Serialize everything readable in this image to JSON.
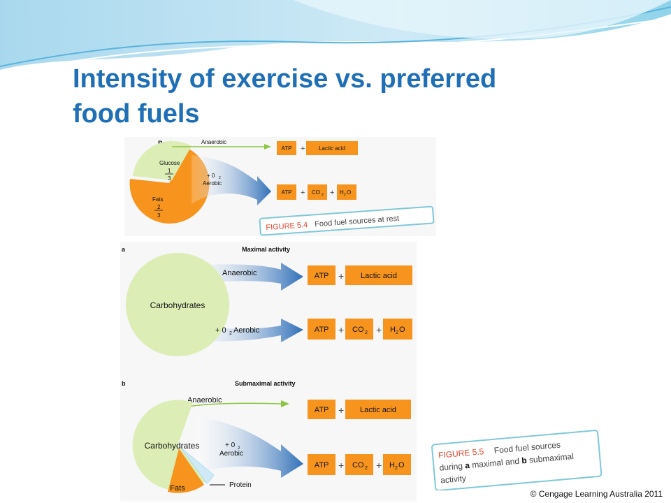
{
  "slide": {
    "title_line1": "Intensity of exercise vs. preferred",
    "title_line2": "food fuels",
    "copyright": "© Cengage Learning Australia 2011"
  },
  "figure_5_4": {
    "heading": "Rest",
    "glucose_label": "Glucose",
    "glucose_num": "1",
    "glucose_den": "3",
    "fats_label": "Fats",
    "fats_num": "2",
    "fats_den": "3",
    "anaerobic_label": "Anaerobic",
    "aerobic_label_o2": "+ 0",
    "aerobic_label_sub": "2",
    "aerobic_label": "Aerobic",
    "anaerobic_products": [
      "ATP",
      "Lactic acid"
    ],
    "aerobic_products": [
      "ATP",
      "CO",
      "H",
      "O"
    ],
    "caption_figure": "FIGURE 5.4",
    "caption_text": "Food fuel sources at rest"
  },
  "figure_5_5": {
    "panel_a_letter": "a",
    "panel_a_heading": "Maximal activity",
    "panel_a_circle": "Carbohydrates",
    "panel_a_anaerobic": "Anaerobic",
    "panel_a_aerobic_prefix": "+ 0",
    "panel_a_aerobic_sub": "2",
    "panel_a_aerobic": " Aerobic",
    "panel_b_letter": "b",
    "panel_b_heading": "Submaximal activity",
    "panel_b_carbs": "Carbohydrates",
    "panel_b_fats": "Fats",
    "panel_b_protein": "Protein",
    "panel_b_anaerobic": "Anaerobic",
    "panel_b_aerobic_o2": "+ 0",
    "panel_b_aerobic_sub": "2",
    "panel_b_aerobic": "Aerobic",
    "atp": "ATP",
    "lactic_acid": "Lactic acid",
    "co": "CO",
    "sub2": "2",
    "h": "H",
    "o": "O",
    "plus": "+",
    "caption_figure": "FIGURE 5.5",
    "caption_line1": "Food fuel sources",
    "caption_line2_pre": "during ",
    "caption_line2_a": "a",
    "caption_line2_mid": " maximal and ",
    "caption_line2_b": "b",
    "caption_line2_post": " submaximal",
    "caption_line3": "activity"
  },
  "colors": {
    "title": "#1f6fb6",
    "orange": "#f7941d",
    "light_green": "#dcedb6",
    "arrow_blue": "#2f6fb8",
    "green_line": "#8cc63f",
    "caption_red": "#e8442c",
    "caption_border": "#7fc8d8"
  }
}
